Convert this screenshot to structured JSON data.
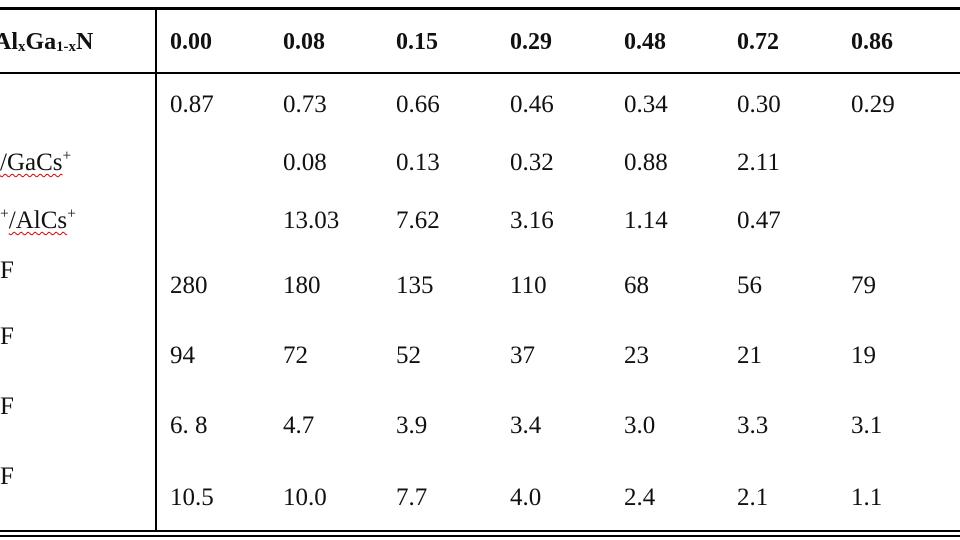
{
  "table": {
    "header": {
      "label_main": "Al",
      "label_sub_x": "x",
      "label_mid": "Ga",
      "label_sub_1x": "1-x",
      "label_end": "N",
      "columns": [
        "0.00",
        "0.08",
        "0.15",
        "0.29",
        "0.48",
        "0.72",
        "0.86"
      ]
    },
    "rows": [
      {
        "label": "",
        "label_sup": "",
        "cells": [
          "0.87",
          "0.73",
          "0.66",
          "0.46",
          "0.34",
          "0.30",
          "0.29"
        ]
      },
      {
        "label": "/GaCs",
        "label_sup": "+",
        "cells": [
          "",
          "0.08",
          "0.13",
          "0.32",
          "0.88",
          "2.11",
          ""
        ]
      },
      {
        "label": "/AlCs",
        "label_sup": "+",
        "cells": [
          "",
          "13.03",
          "7.62",
          "3.16",
          "1.14",
          "0.47",
          ""
        ]
      },
      {
        "label": "F",
        "label_sup": "",
        "cells": [
          "280",
          "180",
          "135",
          "110",
          "68",
          "56",
          "79"
        ]
      },
      {
        "label": "F",
        "label_sup": "",
        "cells": [
          "94",
          "72",
          "52",
          "37",
          "23",
          "21",
          "19"
        ]
      },
      {
        "label": "F",
        "label_sup": "",
        "cells": [
          "6. 8",
          "4.7",
          "3.9",
          "3.4",
          "3.0",
          "3.3",
          "3.1"
        ]
      },
      {
        "label": "F",
        "label_sup": "",
        "cells": [
          "10.5",
          "10.0",
          "7.7",
          "4.0",
          "2.4",
          "2.1",
          "1.1"
        ]
      }
    ]
  }
}
